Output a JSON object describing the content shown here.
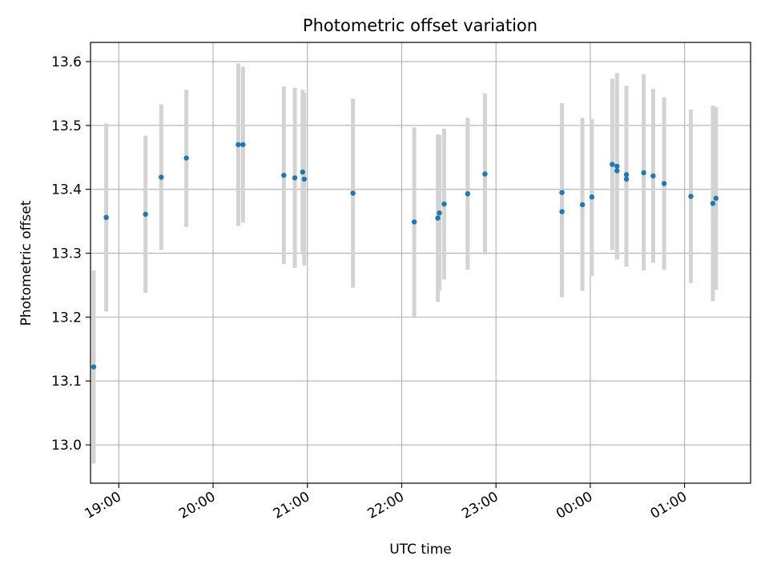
{
  "chart_data": {
    "type": "scatter",
    "title": "Photometric offset variation",
    "xlabel": "UTC time",
    "ylabel": "Photometric offset",
    "x_axis": {
      "kind": "time",
      "range": [
        "18:42",
        "01:42"
      ],
      "ticks": [
        "19:00",
        "20:00",
        "21:00",
        "22:00",
        "23:00",
        "00:00",
        "01:00"
      ]
    },
    "y_axis": {
      "range": [
        12.94,
        13.63
      ],
      "ticks": [
        "13.0",
        "13.1",
        "13.2",
        "13.3",
        "13.4",
        "13.5",
        "13.6"
      ]
    },
    "grid": true,
    "colors": {
      "marker": "#1f77b4",
      "errorbar": "#d3d3d3",
      "grid": "#b0b0b0"
    },
    "series": [
      {
        "points": [
          {
            "time": "18:44",
            "y": 13.122,
            "low": 12.971,
            "high": 13.273
          },
          {
            "time": "18:52",
            "y": 13.356,
            "low": 13.209,
            "high": 13.503
          },
          {
            "time": "19:17",
            "y": 13.361,
            "low": 13.238,
            "high": 13.484
          },
          {
            "time": "19:27",
            "y": 13.419,
            "low": 13.305,
            "high": 13.533
          },
          {
            "time": "19:43",
            "y": 13.449,
            "low": 13.341,
            "high": 13.556
          },
          {
            "time": "20:16",
            "y": 13.47,
            "low": 13.343,
            "high": 13.597
          },
          {
            "time": "20:19",
            "y": 13.47,
            "low": 13.348,
            "high": 13.592
          },
          {
            "time": "20:45",
            "y": 13.422,
            "low": 13.283,
            "high": 13.561
          },
          {
            "time": "20:52",
            "y": 13.418,
            "low": 13.277,
            "high": 13.559
          },
          {
            "time": "20:57",
            "y": 13.427,
            "low": 13.298,
            "high": 13.556
          },
          {
            "time": "20:58",
            "y": 13.416,
            "low": 13.281,
            "high": 13.551
          },
          {
            "time": "21:29",
            "y": 13.394,
            "low": 13.246,
            "high": 13.542
          },
          {
            "time": "22:08",
            "y": 13.349,
            "low": 13.201,
            "high": 13.497
          },
          {
            "time": "22:23",
            "y": 13.355,
            "low": 13.224,
            "high": 13.486
          },
          {
            "time": "22:24",
            "y": 13.363,
            "low": 13.241,
            "high": 13.485
          },
          {
            "time": "22:27",
            "y": 13.377,
            "low": 13.259,
            "high": 13.495
          },
          {
            "time": "22:42",
            "y": 13.393,
            "low": 13.274,
            "high": 13.512
          },
          {
            "time": "22:53",
            "y": 13.424,
            "low": 13.298,
            "high": 13.55
          },
          {
            "time": "23:42",
            "y": 13.365,
            "low": 13.231,
            "high": 13.499
          },
          {
            "time": "23:42",
            "y": 13.395,
            "low": 13.254,
            "high": 13.535
          },
          {
            "time": "23:55",
            "y": 13.376,
            "low": 13.241,
            "high": 13.512
          },
          {
            "time": "00:01",
            "y": 13.388,
            "low": 13.264,
            "high": 13.51
          },
          {
            "time": "00:14",
            "y": 13.439,
            "low": 13.305,
            "high": 13.573
          },
          {
            "time": "00:17",
            "y": 13.436,
            "low": 13.29,
            "high": 13.582
          },
          {
            "time": "00:17",
            "y": 13.429,
            "low": 13.292,
            "high": 13.566
          },
          {
            "time": "00:23",
            "y": 13.423,
            "low": 13.28,
            "high": 13.562
          },
          {
            "time": "00:23",
            "y": 13.416,
            "low": 13.279,
            "high": 13.553
          },
          {
            "time": "00:34",
            "y": 13.426,
            "low": 13.273,
            "high": 13.58
          },
          {
            "time": "00:40",
            "y": 13.421,
            "low": 13.285,
            "high": 13.557
          },
          {
            "time": "00:47",
            "y": 13.409,
            "low": 13.274,
            "high": 13.544
          },
          {
            "time": "01:04",
            "y": 13.389,
            "low": 13.253,
            "high": 13.525
          },
          {
            "time": "01:18",
            "y": 13.378,
            "low": 13.225,
            "high": 13.531
          },
          {
            "time": "01:20",
            "y": 13.386,
            "low": 13.243,
            "high": 13.529
          }
        ]
      }
    ]
  }
}
